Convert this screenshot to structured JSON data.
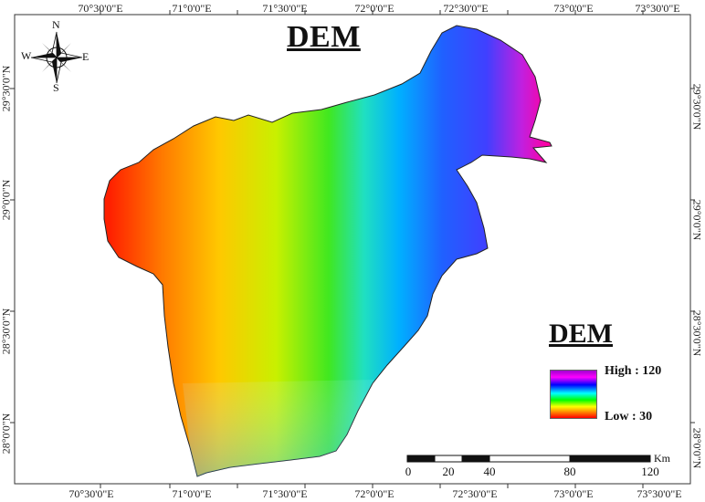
{
  "map": {
    "title": "DEM",
    "grid_lon_labels": [
      "70°30'0\"E",
      "71°0'0\"E",
      "71°30'0\"E",
      "72°0'0\"E",
      "72°30'0\"E",
      "73°0'0\"E",
      "73°30'0\"E"
    ],
    "grid_lat_labels": [
      "29°30'0\"N",
      "29°0'0\"N",
      "28°30'0\"N",
      "28°0'0\"N"
    ],
    "compass": {
      "north": "N",
      "south": "S",
      "east": "E",
      "west": "W"
    },
    "legend": {
      "title": "DEM",
      "high_label": "High : 120",
      "low_label": "Low : 30",
      "high_value": 120,
      "low_value": 30,
      "ramp_colors": [
        "#a000d0",
        "#ff00ff",
        "#0000ff",
        "#00ffff",
        "#00ff00",
        "#ffff00",
        "#ff8000",
        "#ff0000"
      ]
    },
    "scale_bar": {
      "labels": [
        "0",
        "20",
        "40",
        "80",
        "120"
      ],
      "unit": "Km"
    }
  }
}
